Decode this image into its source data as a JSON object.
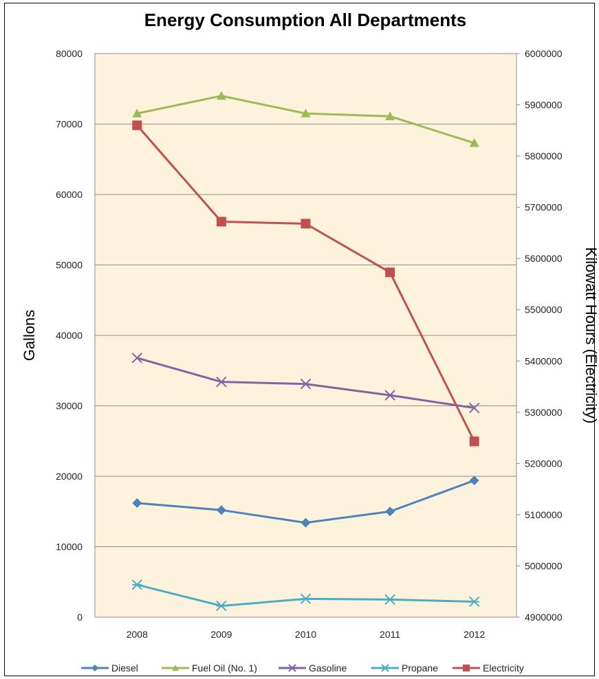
{
  "chart_data": {
    "type": "line",
    "title": "Energy Consumption All Departments",
    "xlabel": "",
    "ylabel": "Gallons",
    "y2label": "Kilowatt Hours (Electricity)",
    "categories": [
      "2008",
      "2009",
      "2010",
      "2011",
      "2012"
    ],
    "ylim": [
      0,
      80000
    ],
    "yticks": [
      "0",
      "10000",
      "20000",
      "30000",
      "40000",
      "50000",
      "60000",
      "70000",
      "80000"
    ],
    "y2lim": [
      4900000,
      6000000
    ],
    "y2ticks": [
      "4900000",
      "5000000",
      "5100000",
      "5200000",
      "5300000",
      "5400000",
      "5500000",
      "5600000",
      "5700000",
      "5800000",
      "5900000",
      "6000000"
    ],
    "grid": true,
    "legend": "bottom",
    "series": [
      {
        "name": "Diesel",
        "axis": "left",
        "marker": "diamond",
        "color": "#4F81BD",
        "values": [
          16200,
          15200,
          13400,
          15000,
          19400
        ]
      },
      {
        "name": "Fuel Oil (No. 1)",
        "axis": "left",
        "marker": "triangle",
        "color": "#9BBB59",
        "values": [
          71500,
          74000,
          71500,
          71100,
          67300
        ]
      },
      {
        "name": "Gasoline",
        "axis": "left",
        "marker": "x",
        "color": "#8064A2",
        "values": [
          36800,
          33400,
          33100,
          31500,
          29700
        ]
      },
      {
        "name": "Propane",
        "axis": "left",
        "marker": "star",
        "color": "#4BACC6",
        "values": [
          4600,
          1600,
          2600,
          2500,
          2200
        ]
      },
      {
        "name": "Electricity",
        "axis": "right",
        "marker": "square",
        "color": "#C0504D",
        "values": [
          5860000,
          5672000,
          5668000,
          5573000,
          5243000
        ]
      }
    ]
  }
}
